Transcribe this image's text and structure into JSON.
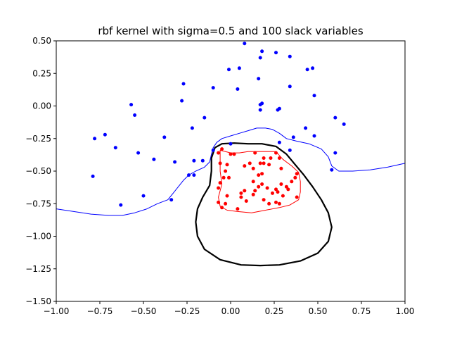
{
  "chart_data": {
    "type": "scatter",
    "title": "rbf kernel with sigma=0.5 and 100 slack variables",
    "xlabel": "",
    "ylabel": "",
    "xlim": [
      -1.0,
      1.0
    ],
    "ylim": [
      -1.5,
      0.5
    ],
    "grid": false,
    "xticks": [
      -1.0,
      -0.75,
      -0.5,
      -0.25,
      0.0,
      0.25,
      0.5,
      0.75,
      1.0
    ],
    "xtick_labels": [
      "−1.00",
      "−0.75",
      "−0.50",
      "−0.25",
      "0.00",
      "0.25",
      "0.50",
      "0.75",
      "1.00"
    ],
    "yticks": [
      0.5,
      0.25,
      0.0,
      -0.25,
      -0.5,
      -0.75,
      -1.0,
      -1.25,
      -1.5
    ],
    "ytick_labels": [
      "0.50",
      "0.25",
      "0.00",
      "−0.25",
      "−0.50",
      "−0.75",
      "−1.00",
      "−1.25",
      "−1.50"
    ],
    "series": [
      {
        "kind": "points",
        "color": "#0000ff",
        "points": [
          [
            0.08,
            0.48
          ],
          [
            0.18,
            0.42
          ],
          [
            0.26,
            0.41
          ],
          [
            0.17,
            0.37
          ],
          [
            0.34,
            0.38
          ],
          [
            -0.01,
            0.28
          ],
          [
            0.05,
            0.29
          ],
          [
            0.44,
            0.28
          ],
          [
            0.47,
            0.29
          ],
          [
            0.16,
            0.21
          ],
          [
            -0.27,
            0.17
          ],
          [
            -0.1,
            0.14
          ],
          [
            0.04,
            0.13
          ],
          [
            0.34,
            0.15
          ],
          [
            -0.28,
            0.04
          ],
          [
            0.48,
            0.08
          ],
          [
            -0.57,
            0.01
          ],
          [
            0.17,
            0.01
          ],
          [
            0.18,
            0.02
          ],
          [
            -0.55,
            -0.07
          ],
          [
            0.17,
            -0.03
          ],
          [
            0.28,
            -0.02
          ],
          [
            0.27,
            -0.03
          ],
          [
            0.6,
            -0.09
          ],
          [
            -0.15,
            -0.09
          ],
          [
            0.65,
            -0.14
          ],
          [
            -0.22,
            -0.17
          ],
          [
            0.43,
            -0.17
          ],
          [
            -0.38,
            -0.24
          ],
          [
            -0.78,
            -0.25
          ],
          [
            -0.72,
            -0.22
          ],
          [
            0.36,
            -0.24
          ],
          [
            0.48,
            -0.23
          ],
          [
            -0.66,
            -0.32
          ],
          [
            -0.53,
            -0.36
          ],
          [
            -0.1,
            -0.34
          ],
          [
            0.6,
            -0.36
          ],
          [
            0.34,
            -0.34
          ],
          [
            0.28,
            -0.28
          ],
          [
            -0.44,
            -0.41
          ],
          [
            -0.32,
            -0.43
          ],
          [
            -0.21,
            -0.42
          ],
          [
            -0.16,
            -0.42
          ],
          [
            -0.24,
            -0.53
          ],
          [
            -0.21,
            -0.53
          ],
          [
            -0.79,
            -0.54
          ],
          [
            0.58,
            -0.49
          ],
          [
            -0.5,
            -0.69
          ],
          [
            -0.34,
            -0.72
          ],
          [
            -0.63,
            -0.76
          ],
          [
            0.0,
            -0.29
          ]
        ]
      },
      {
        "kind": "points",
        "color": "#ff0000",
        "points": [
          [
            -0.05,
            -0.33
          ],
          [
            0.14,
            -0.36
          ],
          [
            0.26,
            -0.36
          ],
          [
            0.28,
            -0.4
          ],
          [
            0.0,
            -0.37
          ],
          [
            0.02,
            -0.37
          ],
          [
            -0.07,
            -0.36
          ],
          [
            0.23,
            -0.4
          ],
          [
            0.19,
            -0.4
          ],
          [
            -0.02,
            -0.45
          ],
          [
            0.11,
            -0.44
          ],
          [
            0.13,
            -0.48
          ],
          [
            0.17,
            -0.44
          ],
          [
            0.19,
            -0.44
          ],
          [
            0.08,
            -0.46
          ],
          [
            -0.06,
            -0.44
          ],
          [
            -0.03,
            -0.5
          ],
          [
            0.29,
            -0.48
          ],
          [
            0.22,
            -0.45
          ],
          [
            0.16,
            -0.53
          ],
          [
            0.18,
            -0.52
          ],
          [
            0.38,
            -0.52
          ],
          [
            -0.04,
            -0.55
          ],
          [
            -0.01,
            -0.55
          ],
          [
            0.37,
            -0.55
          ],
          [
            0.35,
            -0.58
          ],
          [
            -0.06,
            -0.59
          ],
          [
            0.13,
            -0.58
          ],
          [
            0.29,
            -0.6
          ],
          [
            -0.07,
            -0.63
          ],
          [
            0.18,
            -0.6
          ],
          [
            0.32,
            -0.62
          ],
          [
            0.21,
            -0.63
          ],
          [
            0.33,
            -0.64
          ],
          [
            0.16,
            -0.62
          ],
          [
            0.26,
            -0.64
          ],
          [
            0.27,
            -0.66
          ],
          [
            0.08,
            -0.65
          ],
          [
            0.14,
            -0.65
          ],
          [
            0.24,
            -0.67
          ],
          [
            0.06,
            -0.67
          ],
          [
            0.3,
            -0.69
          ],
          [
            -0.02,
            -0.69
          ],
          [
            0.13,
            -0.68
          ],
          [
            0.38,
            -0.7
          ],
          [
            0.06,
            -0.7
          ],
          [
            0.19,
            -0.72
          ],
          [
            0.09,
            -0.73
          ],
          [
            -0.07,
            -0.74
          ],
          [
            0.26,
            -0.74
          ],
          [
            0.22,
            -0.75
          ],
          [
            -0.03,
            -0.75
          ],
          [
            -0.05,
            -0.78
          ],
          [
            0.04,
            -0.79
          ],
          [
            0.28,
            -0.75
          ]
        ]
      },
      {
        "kind": "line",
        "color": "#0000ff",
        "width": 1,
        "points": [
          [
            -1.0,
            -0.79
          ],
          [
            -0.9,
            -0.81
          ],
          [
            -0.8,
            -0.83
          ],
          [
            -0.7,
            -0.84
          ],
          [
            -0.62,
            -0.84
          ],
          [
            -0.55,
            -0.82
          ],
          [
            -0.48,
            -0.79
          ],
          [
            -0.42,
            -0.75
          ],
          [
            -0.36,
            -0.72
          ],
          [
            -0.33,
            -0.67
          ],
          [
            -0.3,
            -0.62
          ],
          [
            -0.27,
            -0.57
          ],
          [
            -0.24,
            -0.53
          ],
          [
            -0.2,
            -0.5
          ],
          [
            -0.15,
            -0.47
          ],
          [
            -0.12,
            -0.43
          ],
          [
            -0.11,
            -0.37
          ],
          [
            -0.1,
            -0.32
          ],
          [
            -0.08,
            -0.28
          ],
          [
            -0.05,
            -0.25
          ],
          [
            0.0,
            -0.23
          ],
          [
            0.05,
            -0.21
          ],
          [
            0.1,
            -0.19
          ],
          [
            0.15,
            -0.17
          ],
          [
            0.2,
            -0.17
          ],
          [
            0.24,
            -0.18
          ],
          [
            0.28,
            -0.21
          ],
          [
            0.32,
            -0.25
          ],
          [
            0.38,
            -0.27
          ],
          [
            0.45,
            -0.29
          ],
          [
            0.52,
            -0.33
          ],
          [
            0.56,
            -0.39
          ],
          [
            0.58,
            -0.46
          ],
          [
            0.62,
            -0.5
          ],
          [
            0.7,
            -0.5
          ],
          [
            0.8,
            -0.49
          ],
          [
            0.9,
            -0.47
          ],
          [
            1.0,
            -0.44
          ]
        ]
      },
      {
        "kind": "line",
        "color": "#000000",
        "width": 2.2,
        "closed": true,
        "points": [
          [
            -0.05,
            -0.29
          ],
          [
            0.02,
            -0.285
          ],
          [
            0.1,
            -0.29
          ],
          [
            0.18,
            -0.29
          ],
          [
            0.26,
            -0.31
          ],
          [
            0.32,
            -0.37
          ],
          [
            0.37,
            -0.45
          ],
          [
            0.42,
            -0.53
          ],
          [
            0.47,
            -0.62
          ],
          [
            0.52,
            -0.72
          ],
          [
            0.56,
            -0.82
          ],
          [
            0.58,
            -0.93
          ],
          [
            0.56,
            -1.04
          ],
          [
            0.5,
            -1.13
          ],
          [
            0.4,
            -1.19
          ],
          [
            0.28,
            -1.22
          ],
          [
            0.17,
            -1.225
          ],
          [
            0.06,
            -1.22
          ],
          [
            -0.06,
            -1.18
          ],
          [
            -0.15,
            -1.1
          ],
          [
            -0.19,
            -1.0
          ],
          [
            -0.2,
            -0.89
          ],
          [
            -0.19,
            -0.79
          ],
          [
            -0.16,
            -0.7
          ],
          [
            -0.12,
            -0.61
          ],
          [
            -0.11,
            -0.5
          ],
          [
            -0.11,
            -0.4
          ],
          [
            -0.09,
            -0.32
          ]
        ]
      },
      {
        "kind": "line",
        "color": "#ff0000",
        "width": 1,
        "closed": true,
        "points": [
          [
            -0.06,
            -0.34
          ],
          [
            0.0,
            -0.36
          ],
          [
            0.05,
            -0.36
          ],
          [
            0.1,
            -0.35
          ],
          [
            0.15,
            -0.35
          ],
          [
            0.2,
            -0.35
          ],
          [
            0.26,
            -0.35
          ],
          [
            0.3,
            -0.41
          ],
          [
            0.35,
            -0.46
          ],
          [
            0.39,
            -0.51
          ],
          [
            0.4,
            -0.58
          ],
          [
            0.4,
            -0.66
          ],
          [
            0.39,
            -0.72
          ],
          [
            0.34,
            -0.76
          ],
          [
            0.28,
            -0.78
          ],
          [
            0.2,
            -0.8
          ],
          [
            0.12,
            -0.82
          ],
          [
            0.04,
            -0.81
          ],
          [
            -0.02,
            -0.8
          ],
          [
            -0.06,
            -0.77
          ],
          [
            -0.07,
            -0.7
          ],
          [
            -0.05,
            -0.6
          ],
          [
            -0.06,
            -0.5
          ],
          [
            -0.06,
            -0.42
          ]
        ]
      }
    ]
  }
}
